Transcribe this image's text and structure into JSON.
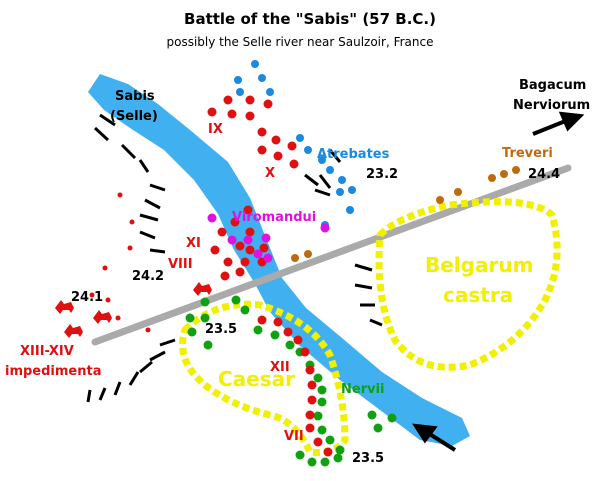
{
  "title": "Battle of the \"Sabis\" (57 B.C.)",
  "subtitle": "possibly the Selle river near Saulzoir, France",
  "labels": [
    "Sabis",
    "(Selle)",
    "IX",
    "X",
    "Atrebates",
    "23.2",
    "Bagacum",
    "Nerviorum",
    "Treveri",
    "24.4",
    "Viromandui",
    "XI",
    "VIII",
    "24.2",
    "24.1",
    "XIII-XIV",
    "impedimenta",
    "Belgarum",
    "castra",
    "23.5",
    "XII",
    "Caesar",
    "Nervii",
    "VII",
    "23.5"
  ]
}
